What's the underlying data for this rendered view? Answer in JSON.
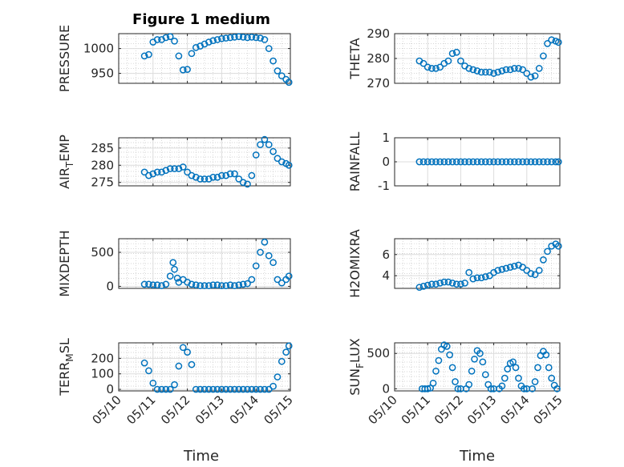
{
  "figure": {
    "title": "Figure 1 medium",
    "x_tick_labels": [
      "05/10",
      "05/11",
      "05/12",
      "05/13",
      "05/14",
      "05/15"
    ],
    "xlabel": "Time",
    "marker_color": "#0072BD"
  },
  "chart_data": [
    {
      "type": "scatter",
      "ylabel": "PRESSURE",
      "xlim": [
        "05/10",
        "05/15"
      ],
      "ylim": [
        930,
        1030
      ],
      "yticks": [
        950,
        1000
      ],
      "x_minor_grid": true,
      "y_minor_grid": true,
      "x": [
        "05/10 18:00",
        "05/10 21:00",
        "05/11 00:00",
        "05/11 03:00",
        "05/11 06:00",
        "05/11 09:00",
        "05/11 12:00",
        "05/11 15:00",
        "05/11 18:00",
        "05/11 21:00",
        "05/12 00:00",
        "05/12 03:00",
        "05/12 06:00",
        "05/12 09:00",
        "05/12 12:00",
        "05/12 15:00",
        "05/12 18:00",
        "05/12 21:00",
        "05/13 00:00",
        "05/13 03:00",
        "05/13 06:00",
        "05/13 09:00",
        "05/13 12:00",
        "05/13 15:00",
        "05/13 18:00",
        "05/13 21:00",
        "05/14 00:00",
        "05/14 03:00",
        "05/14 06:00",
        "05/14 09:00",
        "05/14 12:00",
        "05/14 15:00",
        "05/14 18:00",
        "05/14 21:00",
        "05/14 23:00"
      ],
      "y": [
        985,
        988,
        1013,
        1018,
        1018,
        1022,
        1024,
        1015,
        985,
        957,
        958,
        990,
        1002,
        1005,
        1009,
        1013,
        1016,
        1018,
        1020,
        1021,
        1022,
        1023,
        1024,
        1023,
        1022,
        1023,
        1022,
        1021,
        1018,
        1000,
        975,
        955,
        945,
        938,
        932
      ]
    },
    {
      "type": "scatter",
      "ylabel": "THETA",
      "xlim": [
        "05/10",
        "05/15"
      ],
      "ylim": [
        270,
        290
      ],
      "yticks": [
        270,
        280,
        290
      ],
      "x_minor_grid": true,
      "y_minor_grid": true,
      "x": [
        "05/10 18:00",
        "05/10 21:00",
        "05/11 00:00",
        "05/11 03:00",
        "05/11 06:00",
        "05/11 09:00",
        "05/11 12:00",
        "05/11 15:00",
        "05/11 18:00",
        "05/11 21:00",
        "05/12 00:00",
        "05/12 03:00",
        "05/12 06:00",
        "05/12 09:00",
        "05/12 12:00",
        "05/12 15:00",
        "05/12 18:00",
        "05/12 21:00",
        "05/13 00:00",
        "05/13 03:00",
        "05/13 06:00",
        "05/13 09:00",
        "05/13 12:00",
        "05/13 15:00",
        "05/13 18:00",
        "05/13 21:00",
        "05/14 00:00",
        "05/14 03:00",
        "05/14 06:00",
        "05/14 09:00",
        "05/14 12:00",
        "05/14 15:00",
        "05/14 18:00",
        "05/14 21:00",
        "05/14 23:00"
      ],
      "y": [
        279,
        278,
        276.5,
        276,
        276,
        276.5,
        278,
        279,
        282,
        282.5,
        279,
        277,
        276,
        275.5,
        275,
        274.5,
        274.5,
        274.5,
        274,
        274.5,
        275,
        275.5,
        275.5,
        276,
        276,
        275.5,
        274,
        272.5,
        273,
        276,
        281,
        286,
        287.5,
        287,
        286.5
      ]
    },
    {
      "type": "scatter",
      "ylabel": "AIR_TEMP",
      "xlim": [
        "05/10",
        "05/15"
      ],
      "ylim": [
        274,
        288
      ],
      "yticks": [
        275,
        280,
        285
      ],
      "x_minor_grid": true,
      "y_minor_grid": true,
      "x": [
        "05/10 18:00",
        "05/10 21:00",
        "05/11 00:00",
        "05/11 03:00",
        "05/11 06:00",
        "05/11 09:00",
        "05/11 12:00",
        "05/11 15:00",
        "05/11 18:00",
        "05/11 21:00",
        "05/12 00:00",
        "05/12 03:00",
        "05/12 06:00",
        "05/12 09:00",
        "05/12 12:00",
        "05/12 15:00",
        "05/12 18:00",
        "05/12 21:00",
        "05/13 00:00",
        "05/13 03:00",
        "05/13 06:00",
        "05/13 09:00",
        "05/13 12:00",
        "05/13 15:00",
        "05/13 18:00",
        "05/13 21:00",
        "05/14 00:00",
        "05/14 03:00",
        "05/14 06:00",
        "05/14 09:00",
        "05/14 12:00",
        "05/14 15:00",
        "05/14 18:00",
        "05/14 21:00",
        "05/14 23:00"
      ],
      "y": [
        278,
        277,
        277.5,
        278,
        278,
        278.5,
        279,
        279,
        279,
        279.5,
        278,
        277,
        276.5,
        276,
        276,
        276,
        276.5,
        276.5,
        277,
        277,
        277.5,
        277.5,
        276,
        275,
        274.5,
        277,
        283,
        286,
        287.5,
        286,
        284,
        282,
        281,
        280.5,
        280
      ]
    },
    {
      "type": "scatter",
      "ylabel": "RAINFALL",
      "xlim": [
        "05/10",
        "05/15"
      ],
      "ylim": [
        -1,
        1
      ],
      "yticks": [
        -1,
        0,
        1
      ],
      "x_minor_grid": false,
      "y_minor_grid": false,
      "x": [
        "05/10 18:00",
        "05/10 21:00",
        "05/11 00:00",
        "05/11 03:00",
        "05/11 06:00",
        "05/11 09:00",
        "05/11 12:00",
        "05/11 15:00",
        "05/11 18:00",
        "05/11 21:00",
        "05/12 00:00",
        "05/12 03:00",
        "05/12 06:00",
        "05/12 09:00",
        "05/12 12:00",
        "05/12 15:00",
        "05/12 18:00",
        "05/12 21:00",
        "05/13 00:00",
        "05/13 03:00",
        "05/13 06:00",
        "05/13 09:00",
        "05/13 12:00",
        "05/13 15:00",
        "05/13 18:00",
        "05/13 21:00",
        "05/14 00:00",
        "05/14 03:00",
        "05/14 06:00",
        "05/14 09:00",
        "05/14 12:00",
        "05/14 15:00",
        "05/14 18:00",
        "05/14 21:00",
        "05/14 23:00"
      ],
      "y": [
        0,
        0,
        0,
        0,
        0,
        0,
        0,
        0,
        0,
        0,
        0,
        0,
        0,
        0,
        0,
        0,
        0,
        0,
        0,
        0,
        0,
        0,
        0,
        0,
        0,
        0,
        0,
        0,
        0,
        0,
        0,
        0,
        0,
        0,
        0
      ]
    },
    {
      "type": "scatter",
      "ylabel": "MIXDEPTH",
      "xlim": [
        "05/10",
        "05/15"
      ],
      "ylim": [
        -30,
        700
      ],
      "yticks": [
        0,
        500
      ],
      "x_minor_grid": true,
      "y_minor_grid": true,
      "x": [
        "05/10 18:00",
        "05/10 21:00",
        "05/11 00:00",
        "05/11 03:00",
        "05/11 06:00",
        "05/11 09:00",
        "05/11 12:00",
        "05/11 14:00",
        "05/11 15:00",
        "05/11 17:00",
        "05/11 18:00",
        "05/11 21:00",
        "05/12 00:00",
        "05/12 03:00",
        "05/12 06:00",
        "05/12 09:00",
        "05/12 12:00",
        "05/12 15:00",
        "05/12 18:00",
        "05/12 21:00",
        "05/13 00:00",
        "05/13 03:00",
        "05/13 06:00",
        "05/13 09:00",
        "05/13 12:00",
        "05/13 15:00",
        "05/13 18:00",
        "05/13 21:00",
        "05/14 00:00",
        "05/14 03:00",
        "05/14 06:00",
        "05/14 09:00",
        "05/14 12:00",
        "05/14 15:00",
        "05/14 18:00",
        "05/14 21:00",
        "05/14 23:00"
      ],
      "y": [
        30,
        30,
        20,
        20,
        10,
        30,
        150,
        350,
        250,
        120,
        60,
        100,
        60,
        30,
        20,
        10,
        10,
        10,
        20,
        20,
        10,
        10,
        20,
        10,
        20,
        30,
        40,
        100,
        300,
        500,
        650,
        450,
        350,
        100,
        50,
        100,
        150
      ]
    },
    {
      "type": "scatter",
      "ylabel": "H2OMIXRA",
      "xlim": [
        "05/10",
        "05/15"
      ],
      "ylim": [
        2.8,
        7.5
      ],
      "yticks": [
        4,
        6
      ],
      "x_minor_grid": true,
      "y_minor_grid": true,
      "x": [
        "05/10 18:00",
        "05/10 21:00",
        "05/11 00:00",
        "05/11 03:00",
        "05/11 06:00",
        "05/11 09:00",
        "05/11 12:00",
        "05/11 15:00",
        "05/11 18:00",
        "05/11 21:00",
        "05/12 00:00",
        "05/12 03:00",
        "05/12 06:00",
        "05/12 09:00",
        "05/12 12:00",
        "05/12 15:00",
        "05/12 18:00",
        "05/12 21:00",
        "05/13 00:00",
        "05/13 03:00",
        "05/13 06:00",
        "05/13 09:00",
        "05/13 12:00",
        "05/13 15:00",
        "05/13 18:00",
        "05/13 21:00",
        "05/14 00:00",
        "05/14 03:00",
        "05/14 06:00",
        "05/14 09:00",
        "05/14 12:00",
        "05/14 15:00",
        "05/14 18:00",
        "05/14 21:00",
        "05/14 23:00"
      ],
      "y": [
        2.9,
        3.0,
        3.1,
        3.2,
        3.2,
        3.3,
        3.4,
        3.4,
        3.3,
        3.2,
        3.2,
        3.3,
        4.3,
        3.7,
        3.8,
        3.8,
        3.9,
        4.0,
        4.3,
        4.5,
        4.6,
        4.7,
        4.8,
        4.9,
        5.0,
        4.8,
        4.5,
        4.2,
        4.1,
        4.5,
        5.5,
        6.3,
        6.8,
        7.0,
        6.8
      ]
    },
    {
      "type": "scatter",
      "ylabel": "TERR_MSL",
      "xlim": [
        "05/10",
        "05/15"
      ],
      "ylim": [
        -10,
        300
      ],
      "yticks": [
        0,
        100,
        200
      ],
      "x_minor_grid": true,
      "y_minor_grid": true,
      "x": [
        "05/10 18:00",
        "05/10 21:00",
        "05/11 00:00",
        "05/11 03:00",
        "05/11 06:00",
        "05/11 09:00",
        "05/11 12:00",
        "05/11 15:00",
        "05/11 18:00",
        "05/11 21:00",
        "05/12 00:00",
        "05/12 03:00",
        "05/12 06:00",
        "05/12 09:00",
        "05/12 12:00",
        "05/12 15:00",
        "05/12 18:00",
        "05/12 21:00",
        "05/13 00:00",
        "05/13 03:00",
        "05/13 06:00",
        "05/13 09:00",
        "05/13 12:00",
        "05/13 15:00",
        "05/13 18:00",
        "05/13 21:00",
        "05/14 00:00",
        "05/14 03:00",
        "05/14 06:00",
        "05/14 09:00",
        "05/14 12:00",
        "05/14 15:00",
        "05/14 18:00",
        "05/14 21:00",
        "05/14 23:00"
      ],
      "y": [
        170,
        120,
        40,
        0,
        0,
        0,
        0,
        30,
        150,
        270,
        240,
        160,
        0,
        0,
        0,
        0,
        0,
        0,
        0,
        0,
        0,
        0,
        0,
        0,
        0,
        0,
        0,
        0,
        0,
        0,
        20,
        80,
        180,
        240,
        280
      ]
    },
    {
      "type": "scatter",
      "ylabel": "SUN_FLUX",
      "xlim": [
        "05/10",
        "05/15"
      ],
      "ylim": [
        -30,
        650
      ],
      "yticks": [
        0,
        500
      ],
      "x_minor_grid": true,
      "y_minor_grid": true,
      "x": [
        "05/10 20:00",
        "05/10 22:00",
        "05/11 00:00",
        "05/11 02:00",
        "05/11 04:00",
        "05/11 06:00",
        "05/11 08:00",
        "05/11 10:00",
        "05/11 12:00",
        "05/11 14:00",
        "05/11 16:00",
        "05/11 18:00",
        "05/11 20:00",
        "05/11 22:00",
        "05/12 00:00",
        "05/12 04:00",
        "05/12 06:00",
        "05/12 08:00",
        "05/12 10:00",
        "05/12 12:00",
        "05/12 14:00",
        "05/12 16:00",
        "05/12 18:00",
        "05/12 20:00",
        "05/12 22:00",
        "05/13 00:00",
        "05/13 04:00",
        "05/13 06:00",
        "05/13 08:00",
        "05/13 10:00",
        "05/13 12:00",
        "05/13 14:00",
        "05/13 16:00",
        "05/13 18:00",
        "05/13 20:00",
        "05/13 22:00",
        "05/14 00:00",
        "05/14 04:00",
        "05/14 06:00",
        "05/14 08:00",
        "05/14 10:00",
        "05/14 12:00",
        "05/14 14:00",
        "05/14 16:00",
        "05/14 18:00",
        "05/14 20:00",
        "05/14 22:00"
      ],
      "y": [
        0,
        0,
        0,
        10,
        80,
        250,
        400,
        560,
        620,
        600,
        480,
        300,
        100,
        0,
        0,
        0,
        60,
        250,
        420,
        540,
        500,
        380,
        200,
        60,
        0,
        0,
        0,
        40,
        150,
        280,
        360,
        380,
        300,
        150,
        40,
        0,
        0,
        0,
        100,
        300,
        470,
        530,
        480,
        300,
        150,
        50,
        0
      ]
    }
  ]
}
